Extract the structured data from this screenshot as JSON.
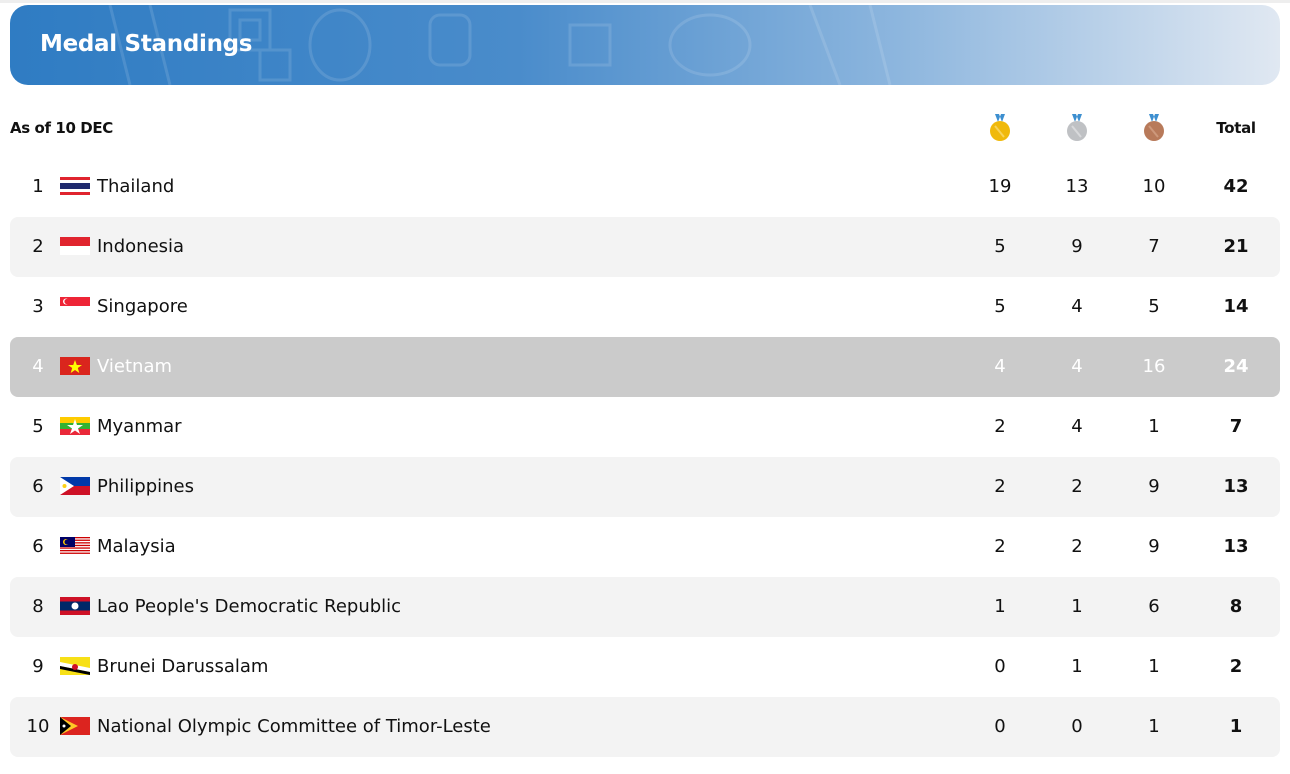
{
  "header": {
    "title": "Medal Standings"
  },
  "table": {
    "as_of": "As of 10 DEC",
    "columns": {
      "gold_icon": "gold-medal-icon",
      "silver_icon": "silver-medal-icon",
      "bronze_icon": "bronze-medal-icon",
      "total": "Total"
    },
    "rows": [
      {
        "rank": "1",
        "country": "Thailand",
        "flag": "th",
        "gold": "19",
        "silver": "13",
        "bronze": "10",
        "total": "42"
      },
      {
        "rank": "2",
        "country": "Indonesia",
        "flag": "id",
        "gold": "5",
        "silver": "9",
        "bronze": "7",
        "total": "21"
      },
      {
        "rank": "3",
        "country": "Singapore",
        "flag": "sg",
        "gold": "5",
        "silver": "4",
        "bronze": "5",
        "total": "14"
      },
      {
        "rank": "4",
        "country": "Vietnam",
        "flag": "vn",
        "gold": "4",
        "silver": "4",
        "bronze": "16",
        "total": "24",
        "highlighted": true
      },
      {
        "rank": "5",
        "country": "Myanmar",
        "flag": "mm",
        "gold": "2",
        "silver": "4",
        "bronze": "1",
        "total": "7"
      },
      {
        "rank": "6",
        "country": "Philippines",
        "flag": "ph",
        "gold": "2",
        "silver": "2",
        "bronze": "9",
        "total": "13"
      },
      {
        "rank": "6",
        "country": "Malaysia",
        "flag": "my",
        "gold": "2",
        "silver": "2",
        "bronze": "9",
        "total": "13"
      },
      {
        "rank": "8",
        "country": "Lao People's Democratic Republic",
        "flag": "la",
        "gold": "1",
        "silver": "1",
        "bronze": "6",
        "total": "8"
      },
      {
        "rank": "9",
        "country": "Brunei Darussalam",
        "flag": "bn",
        "gold": "0",
        "silver": "1",
        "bronze": "1",
        "total": "2"
      },
      {
        "rank": "10",
        "country": "National Olympic Committee of Timor-Leste",
        "flag": "tl",
        "gold": "0",
        "silver": "0",
        "bronze": "1",
        "total": "1"
      }
    ]
  },
  "colors": {
    "banner": "#2f7cc3",
    "highlight_row": "#cbcbcb",
    "alt_row": "#f3f3f3",
    "gold": "#f0b90b",
    "silver": "#bfc1c4",
    "bronze": "#b87a5a",
    "ribbon": "#3d8fd0"
  }
}
